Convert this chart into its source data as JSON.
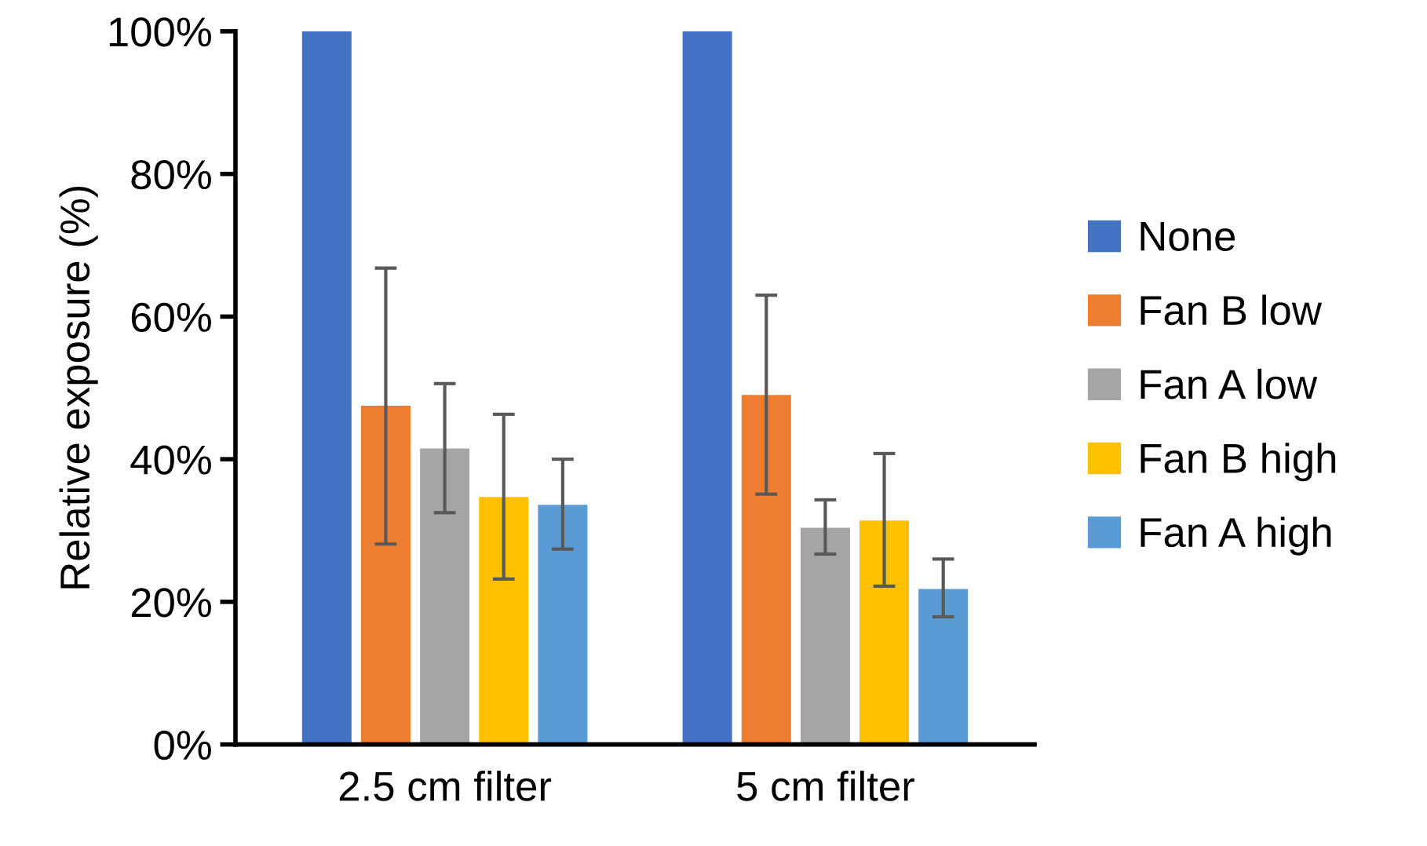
{
  "chart_data": {
    "type": "bar",
    "ylabel": "Relative exposure (%)",
    "categories": [
      "2.5 cm filter",
      "5 cm filter"
    ],
    "series": [
      {
        "name": "None",
        "color": "#4472c4",
        "values": [
          100,
          100
        ],
        "errors": [
          null,
          null
        ]
      },
      {
        "name": "Fan B low",
        "color": "#ed7d31",
        "values": [
          47.5,
          49.0
        ],
        "errors": [
          [
            28.1,
            66.8
          ],
          [
            35.1,
            63.0
          ]
        ]
      },
      {
        "name": "Fan A low",
        "color": "#a5a5a5",
        "values": [
          41.5,
          30.4
        ],
        "errors": [
          [
            32.5,
            50.6
          ],
          [
            26.7,
            34.3
          ]
        ]
      },
      {
        "name": "Fan B high",
        "color": "#ffc000",
        "values": [
          34.7,
          31.4
        ],
        "errors": [
          [
            23.2,
            46.3
          ],
          [
            22.2,
            40.8
          ]
        ]
      },
      {
        "name": "Fan A high",
        "color": "#5b9bd5",
        "values": [
          33.6,
          21.8
        ],
        "errors": [
          [
            27.4,
            40.0
          ],
          [
            17.9,
            26.0
          ]
        ]
      }
    ],
    "ylim": [
      0,
      100
    ],
    "yticks": [
      {
        "value": 0,
        "label": "0%"
      },
      {
        "value": 20,
        "label": "20%"
      },
      {
        "value": 40,
        "label": "40%"
      },
      {
        "value": 60,
        "label": "60%"
      },
      {
        "value": 80,
        "label": "80%"
      },
      {
        "value": 100,
        "label": "100%"
      }
    ],
    "grid": false,
    "legend": "right"
  }
}
